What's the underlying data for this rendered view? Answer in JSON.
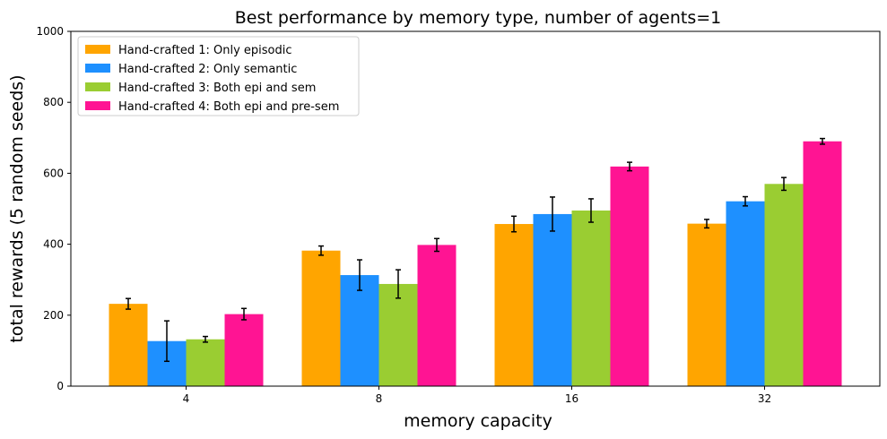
{
  "chart_data": {
    "type": "bar",
    "title": "Best performance by memory type, number of agents=1",
    "xlabel": "memory capacity",
    "ylabel": "total rewards (5 random seeds)",
    "categories": [
      "4",
      "8",
      "16",
      "32"
    ],
    "ylim": [
      0,
      1000
    ],
    "yticks": [
      0,
      200,
      400,
      600,
      800,
      1000
    ],
    "grid": false,
    "legend_position": "top-left",
    "series": [
      {
        "name": "Hand-crafted 1: Only episodic",
        "color": "#FFA500",
        "values": [
          232,
          382,
          457,
          458
        ],
        "errors": [
          15,
          13,
          22,
          12
        ]
      },
      {
        "name": "Hand-crafted 2: Only semantic",
        "color": "#1E90FF",
        "values": [
          127,
          313,
          485,
          521
        ],
        "errors": [
          57,
          43,
          48,
          13
        ]
      },
      {
        "name": "Hand-crafted 3: Both epi and sem",
        "color": "#9ACD32",
        "values": [
          132,
          288,
          495,
          570
        ],
        "errors": [
          8,
          40,
          33,
          18
        ]
      },
      {
        "name": "Hand-crafted 4: Both epi and pre-sem",
        "color": "#FF1493",
        "values": [
          203,
          398,
          619,
          690
        ],
        "errors": [
          16,
          18,
          12,
          8
        ]
      }
    ]
  }
}
